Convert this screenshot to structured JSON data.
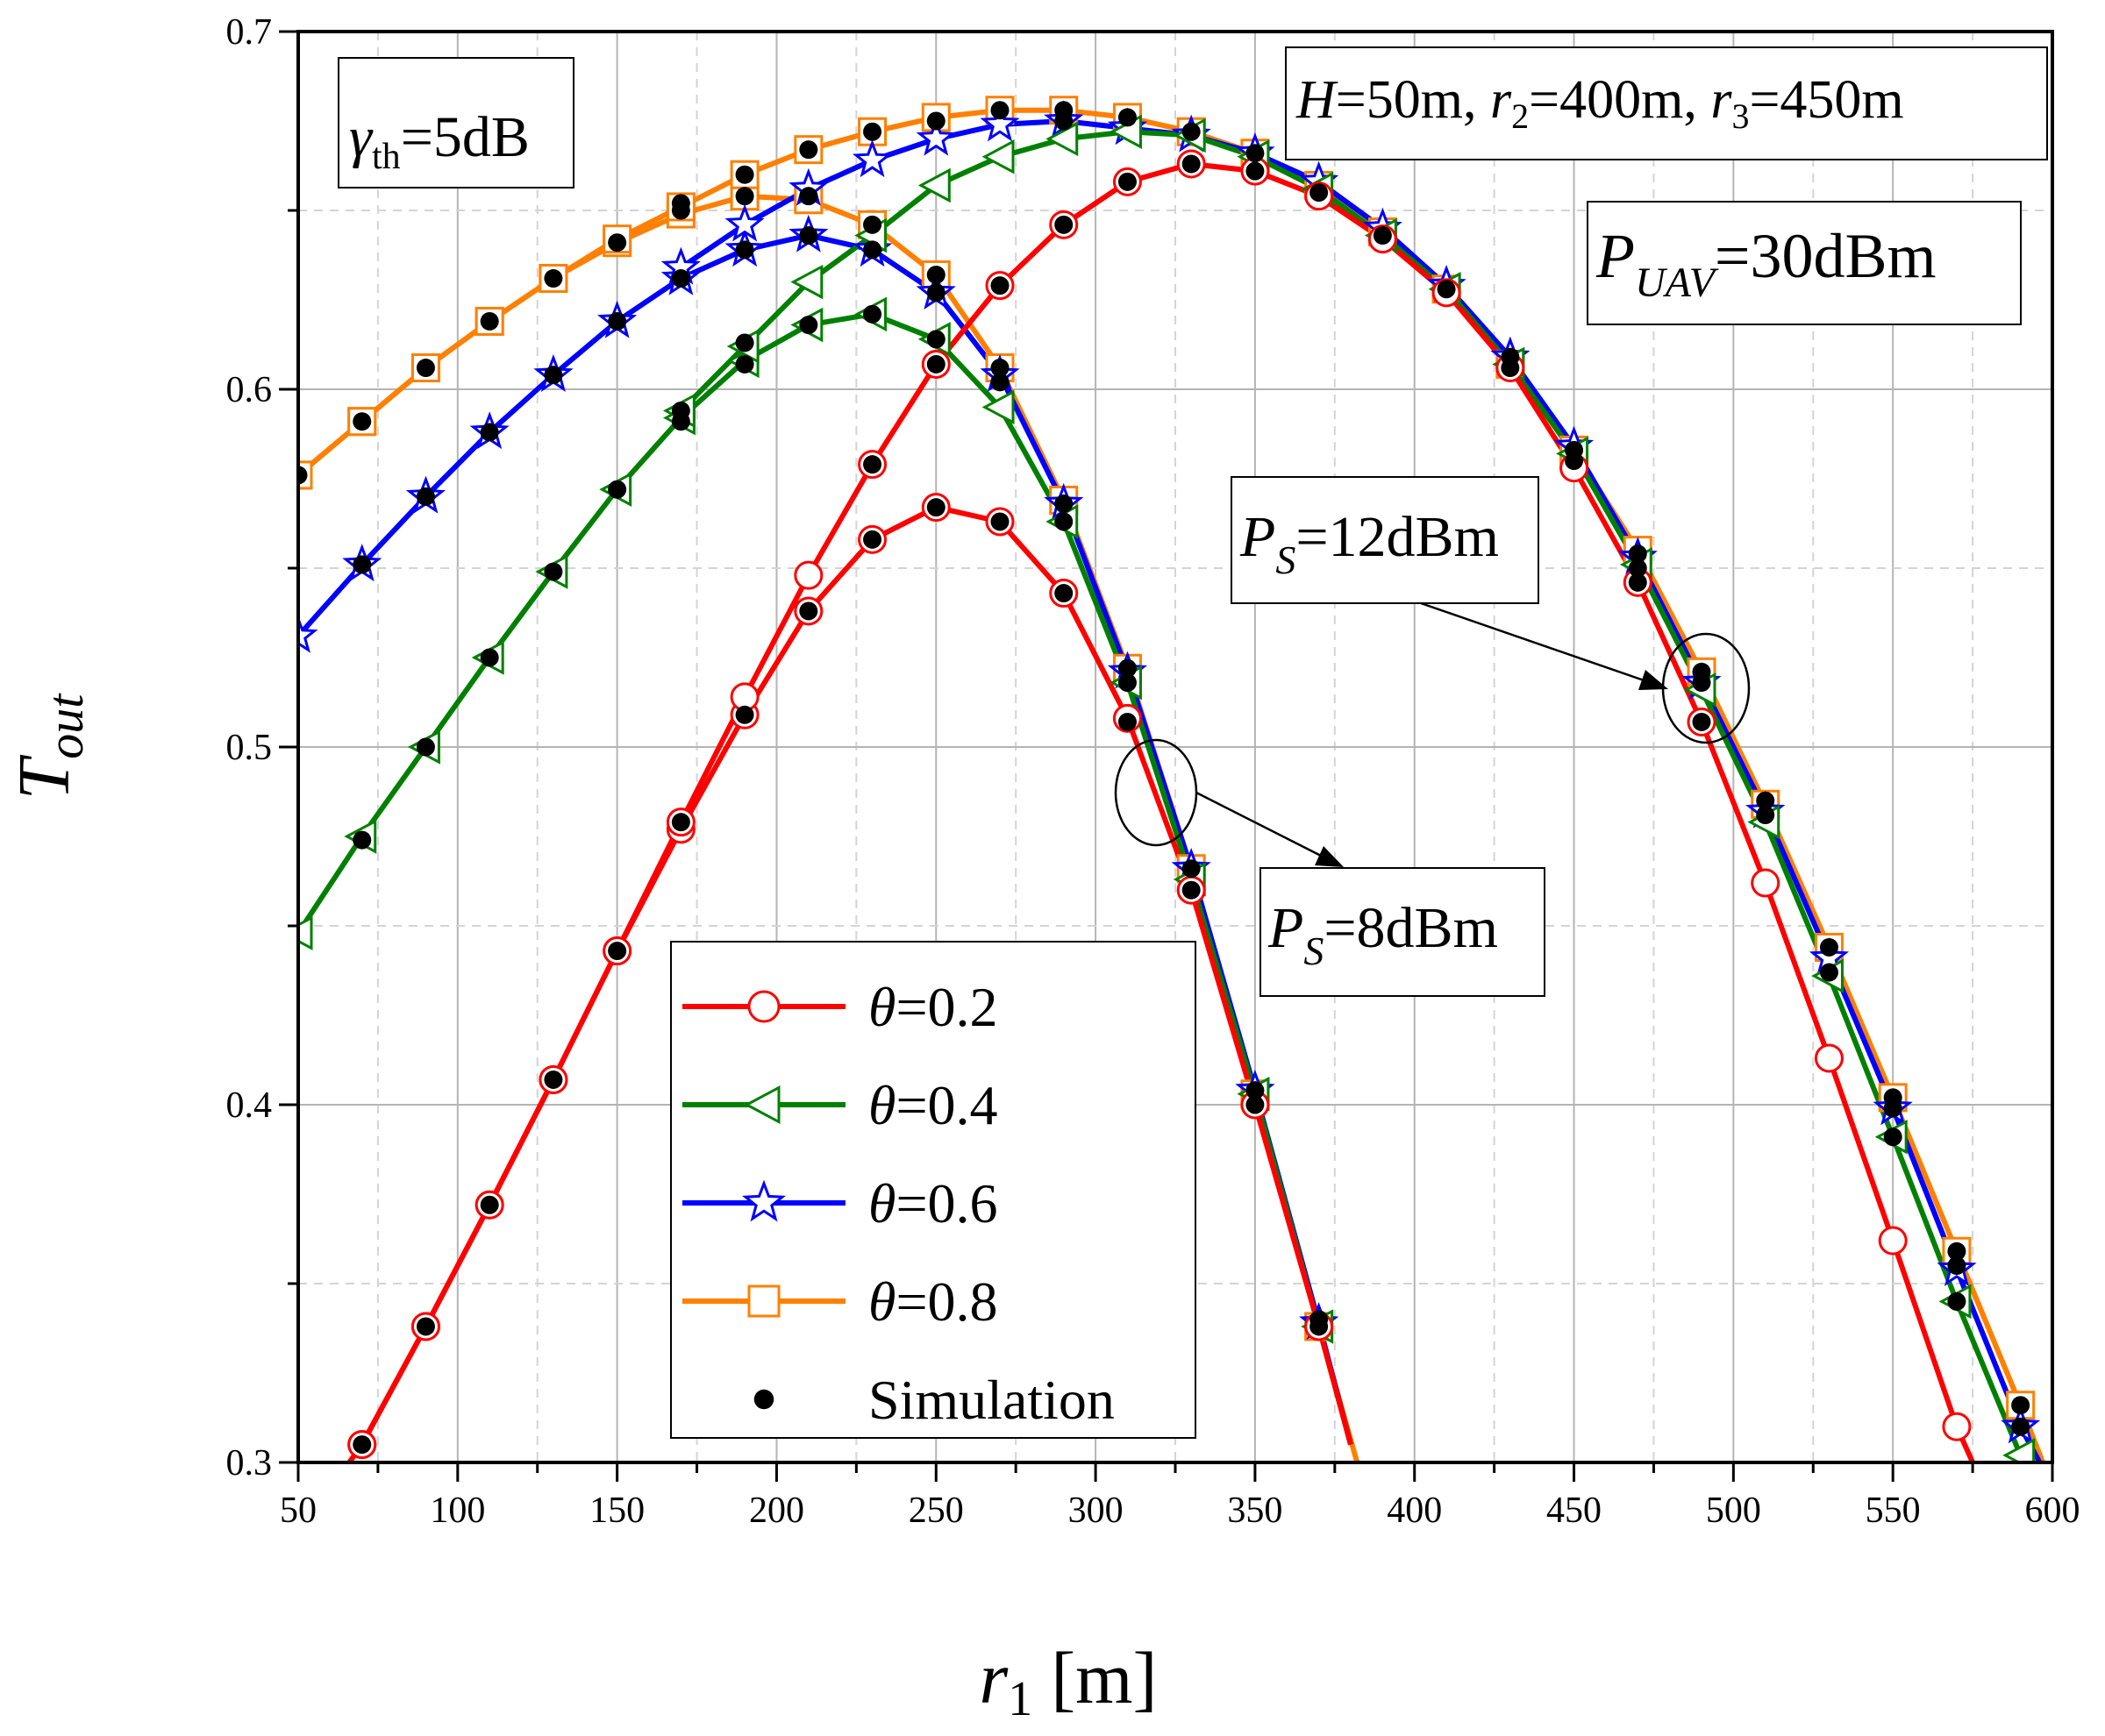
{
  "chart_data": {
    "type": "line",
    "title": "",
    "xlabel": "r",
    "xlabel_sub": "1",
    "xlabel_unit": " [m]",
    "ylabel": "T",
    "ylabel_sub": "out",
    "xlim": [
      50,
      600
    ],
    "ylim": [
      0.3,
      0.7
    ],
    "xticks": [
      "50",
      "100",
      "150",
      "200",
      "250",
      "300",
      "350",
      "400",
      "450",
      "500",
      "550",
      "600"
    ],
    "yticks": [
      "0.3",
      "0.4",
      "0.5",
      "0.6",
      "0.7"
    ],
    "grid": true,
    "colors": {
      "theta_0_2": "#ff0000",
      "theta_0_4": "#008000",
      "theta_0_6": "#0000ff",
      "theta_0_8": "#ff8000",
      "sim": "#000000"
    },
    "groups": [
      {
        "name": "P_S=8dBm",
        "series": [
          {
            "name": "θ=0.2",
            "marker": "circle",
            "color": "#ff0000",
            "x": [
              70,
              90,
              110,
              130,
              150,
              170,
              190,
              210,
              230,
              250,
              270,
              290,
              310,
              330,
              350,
              370,
              380
            ],
            "y": [
              0.305,
              0.338,
              0.372,
              0.407,
              0.443,
              0.477,
              0.509,
              0.538,
              0.558,
              0.567,
              0.563,
              0.543,
              0.508,
              0.46,
              0.4,
              0.338,
              0.305
            ]
          },
          {
            "name": "θ=0.4",
            "marker": "triangle-left",
            "color": "#008000",
            "x": [
              50,
              70,
              90,
              110,
              130,
              150,
              170,
              190,
              210,
              230,
              250,
              270,
              290,
              310,
              330,
              350,
              370,
              380
            ],
            "y": [
              0.448,
              0.475,
              0.5,
              0.525,
              0.549,
              0.572,
              0.592,
              0.608,
              0.618,
              0.621,
              0.614,
              0.595,
              0.563,
              0.518,
              0.463,
              0.403,
              0.338,
              0.305
            ]
          },
          {
            "name": "θ=0.6",
            "marker": "star",
            "color": "#0000ff",
            "x": [
              50,
              70,
              90,
              110,
              130,
              150,
              170,
              190,
              210,
              230,
              250,
              270,
              290,
              310,
              330,
              350,
              370,
              380
            ],
            "y": [
              0.531,
              0.551,
              0.57,
              0.588,
              0.604,
              0.619,
              0.631,
              0.639,
              0.643,
              0.639,
              0.627,
              0.604,
              0.568,
              0.521,
              0.466,
              0.404,
              0.339,
              0.305
            ]
          },
          {
            "name": "θ=0.8",
            "marker": "square",
            "color": "#ff8000",
            "x": [
              50,
              70,
              90,
              110,
              130,
              150,
              170,
              190,
              210,
              230,
              250,
              270,
              290,
              310,
              330,
              350,
              370,
              382
            ],
            "y": [
              0.576,
              0.591,
              0.606,
              0.619,
              0.631,
              0.641,
              0.649,
              0.654,
              0.653,
              0.646,
              0.632,
              0.606,
              0.569,
              0.522,
              0.466,
              0.403,
              0.338,
              0.3
            ]
          }
        ]
      },
      {
        "name": "P_S=12dBm",
        "series": [
          {
            "name": "θ=0.2",
            "marker": "circle",
            "color": "#ff0000",
            "x": [
              66,
              70,
              90,
              110,
              130,
              150,
              170,
              190,
              210,
              230,
              250,
              270,
              290,
              310,
              330,
              350,
              370,
              390,
              410,
              430,
              450,
              470,
              490,
              510,
              530,
              550,
              570,
              575
            ],
            "y": [
              0.3,
              0.305,
              0.338,
              0.372,
              0.407,
              0.443,
              0.479,
              0.514,
              0.548,
              0.579,
              0.607,
              0.629,
              0.646,
              0.658,
              0.663,
              0.661,
              0.654,
              0.642,
              0.627,
              0.606,
              0.578,
              0.546,
              0.507,
              0.462,
              0.413,
              0.362,
              0.31,
              0.3
            ]
          },
          {
            "name": "θ=0.4",
            "marker": "triangle-left",
            "color": "#008000",
            "x": [
              170,
              190,
              210,
              230,
              250,
              270,
              290,
              310,
              330,
              350,
              370,
              390,
              410,
              430,
              450,
              470,
              490,
              510,
              530,
              550,
              570,
              590,
              593
            ],
            "y": [
              0.594,
              0.612,
              0.63,
              0.643,
              0.657,
              0.665,
              0.67,
              0.672,
              0.671,
              0.665,
              0.656,
              0.643,
              0.628,
              0.607,
              0.582,
              0.551,
              0.516,
              0.479,
              0.436,
              0.391,
              0.345,
              0.302,
              0.3
            ]
          },
          {
            "name": "θ=0.6",
            "marker": "star",
            "color": "#0000ff",
            "x": [
              170,
              190,
              210,
              230,
              250,
              270,
              290,
              310,
              330,
              350,
              370,
              390,
              410,
              430,
              450,
              470,
              490,
              510,
              530,
              550,
              570,
              590,
              596
            ],
            "y": [
              0.634,
              0.646,
              0.656,
              0.664,
              0.67,
              0.674,
              0.675,
              0.673,
              0.671,
              0.666,
              0.658,
              0.645,
              0.629,
              0.609,
              0.584,
              0.553,
              0.518,
              0.482,
              0.441,
              0.399,
              0.354,
              0.31,
              0.3
            ]
          },
          {
            "name": "θ=0.8",
            "marker": "square",
            "color": "#ff8000",
            "x": [
              50,
              70,
              90,
              110,
              130,
              150,
              170,
              190,
              210,
              230,
              250,
              270,
              290,
              310,
              330,
              350,
              370,
              390,
              410,
              430,
              450,
              470,
              490,
              510,
              530,
              550,
              570,
              590,
              597
            ],
            "y": [
              0.576,
              0.591,
              0.606,
              0.619,
              0.631,
              0.642,
              0.651,
              0.66,
              0.667,
              0.672,
              0.676,
              0.678,
              0.678,
              0.676,
              0.672,
              0.666,
              0.657,
              0.644,
              0.628,
              0.607,
              0.583,
              0.555,
              0.521,
              0.484,
              0.444,
              0.402,
              0.359,
              0.316,
              0.3
            ]
          }
        ]
      }
    ],
    "simulation": {
      "name": "Simulation",
      "marker": "dot",
      "color": "#000000",
      "points": [
        [
          50,
          0.576
        ],
        [
          70,
          0.474
        ],
        [
          70,
          0.551
        ],
        [
          70,
          0.591
        ],
        [
          70,
          0.305
        ],
        [
          90,
          0.338
        ],
        [
          90,
          0.5
        ],
        [
          90,
          0.57
        ],
        [
          90,
          0.606
        ],
        [
          110,
          0.372
        ],
        [
          110,
          0.525
        ],
        [
          110,
          0.588
        ],
        [
          110,
          0.619
        ],
        [
          130,
          0.407
        ],
        [
          130,
          0.549
        ],
        [
          130,
          0.604
        ],
        [
          130,
          0.631
        ],
        [
          150,
          0.443
        ],
        [
          150,
          0.572
        ],
        [
          150,
          0.619
        ],
        [
          150,
          0.641
        ],
        [
          170,
          0.479
        ],
        [
          170,
          0.591
        ],
        [
          170,
          0.594
        ],
        [
          170,
          0.631
        ],
        [
          170,
          0.65
        ],
        [
          170,
          0.652
        ],
        [
          190,
          0.509
        ],
        [
          190,
          0.607
        ],
        [
          190,
          0.613
        ],
        [
          190,
          0.639
        ],
        [
          190,
          0.654
        ],
        [
          190,
          0.66
        ],
        [
          210,
          0.538
        ],
        [
          210,
          0.618
        ],
        [
          210,
          0.643
        ],
        [
          210,
          0.654
        ],
        [
          210,
          0.667
        ],
        [
          230,
          0.558
        ],
        [
          230,
          0.579
        ],
        [
          230,
          0.621
        ],
        [
          230,
          0.639
        ],
        [
          230,
          0.646
        ],
        [
          230,
          0.672
        ],
        [
          250,
          0.567
        ],
        [
          250,
          0.607
        ],
        [
          250,
          0.614
        ],
        [
          250,
          0.627
        ],
        [
          250,
          0.632
        ],
        [
          250,
          0.675
        ],
        [
          270,
          0.563
        ],
        [
          270,
          0.602
        ],
        [
          270,
          0.606
        ],
        [
          270,
          0.629
        ],
        [
          270,
          0.678
        ],
        [
          290,
          0.543
        ],
        [
          290,
          0.563
        ],
        [
          290,
          0.568
        ],
        [
          290,
          0.646
        ],
        [
          290,
          0.675
        ],
        [
          290,
          0.678
        ],
        [
          310,
          0.507
        ],
        [
          310,
          0.518
        ],
        [
          310,
          0.522
        ],
        [
          310,
          0.658
        ],
        [
          310,
          0.676
        ],
        [
          330,
          0.46
        ],
        [
          330,
          0.466
        ],
        [
          330,
          0.663
        ],
        [
          330,
          0.672
        ],
        [
          350,
          0.4
        ],
        [
          350,
          0.404
        ],
        [
          350,
          0.661
        ],
        [
          350,
          0.666
        ],
        [
          370,
          0.338
        ],
        [
          370,
          0.34
        ],
        [
          370,
          0.655
        ],
        [
          390,
          0.643
        ],
        [
          410,
          0.628
        ],
        [
          430,
          0.606
        ],
        [
          430,
          0.609
        ],
        [
          450,
          0.58
        ],
        [
          450,
          0.583
        ],
        [
          470,
          0.546
        ],
        [
          470,
          0.55
        ],
        [
          470,
          0.554
        ],
        [
          490,
          0.507
        ],
        [
          490,
          0.518
        ],
        [
          490,
          0.521
        ],
        [
          510,
          0.481
        ],
        [
          510,
          0.485
        ],
        [
          530,
          0.437
        ],
        [
          530,
          0.444
        ],
        [
          550,
          0.391
        ],
        [
          550,
          0.399
        ],
        [
          550,
          0.402
        ],
        [
          570,
          0.345
        ],
        [
          570,
          0.355
        ],
        [
          570,
          0.359
        ],
        [
          590,
          0.31
        ],
        [
          590,
          0.316
        ]
      ]
    },
    "legend": {
      "position": "center-bottom",
      "entries": [
        {
          "symbol": "θ",
          "value": "=0.2",
          "marker": "circle",
          "color": "#ff0000"
        },
        {
          "symbol": "θ",
          "value": "=0.4",
          "marker": "triangle-left",
          "color": "#008000"
        },
        {
          "symbol": "θ",
          "value": "=0.6",
          "marker": "star",
          "color": "#0000ff"
        },
        {
          "symbol": "θ",
          "value": "=0.8",
          "marker": "square",
          "color": "#ff8000"
        },
        {
          "symbol": "",
          "value": "Simulation",
          "marker": "dot",
          "color": "#000000"
        }
      ]
    },
    "annotations": {
      "gamma": {
        "symbol": "γ",
        "sub": "th",
        "value": "=5dB"
      },
      "params": {
        "h": "H",
        "h_val": "=50m, ",
        "r2": "r",
        "r2_sub": "2",
        "r2_val": "=400m, ",
        "r3": "r",
        "r3_sub": "3",
        "r3_val": "=450m"
      },
      "puav": {
        "symbol": "P",
        "sub": "UAV",
        "value": "=30dBm"
      },
      "ps12": {
        "symbol": "P",
        "sub": "S",
        "value": "=12dBm"
      },
      "ps8": {
        "symbol": "P",
        "sub": "S",
        "value": "=8dBm"
      }
    }
  }
}
